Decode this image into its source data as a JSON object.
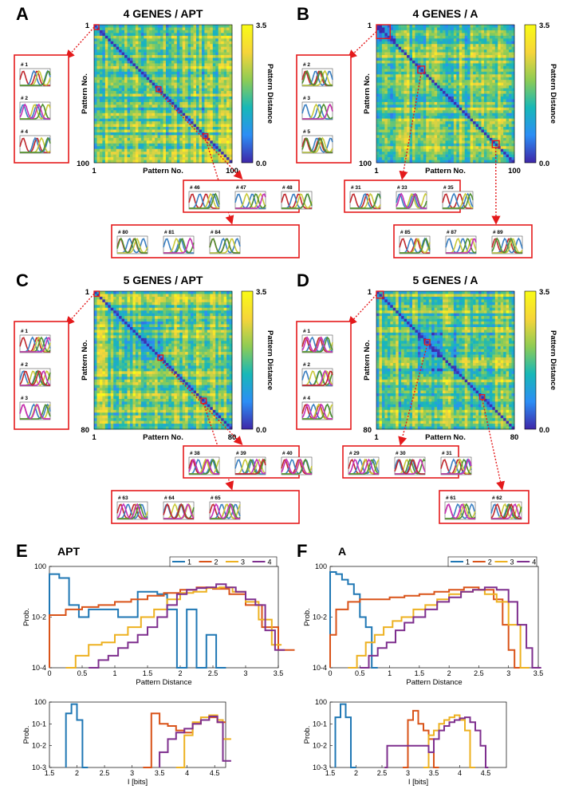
{
  "colors": {
    "highlight": "#e41a1c",
    "series": [
      "#1f77b4",
      "#d95319",
      "#edb120",
      "#7e2f8e"
    ],
    "gene": [
      "#c0282d",
      "#3a7fc1",
      "#c9c93a",
      "#4f8f2f",
      "#c430b8"
    ],
    "colormap": [
      "#3e26a8",
      "#2c8ef5",
      "#17b8b8",
      "#8fcc54",
      "#f6d53a",
      "#f9fb15"
    ]
  },
  "matrix_panels": [
    {
      "id": "A",
      "title": "4 GENES / APT",
      "n": 100,
      "seed": 11,
      "blocks": [],
      "ylabel": "Pattern No.",
      "xlabel": "Pattern No.",
      "tick_start": "1",
      "tick_end": "100",
      "colorbar": {
        "label": "Pattern Distance",
        "max": "3.5",
        "min": "0.0"
      },
      "highlights": [
        {
          "start": 1,
          "size": 1,
          "group": 0
        },
        {
          "start": 46,
          "size": 3,
          "group": 1
        },
        {
          "start": 80,
          "size": 3,
          "group": 2
        }
      ],
      "groups": [
        {
          "labels": [
            "# 1",
            "# 2",
            "# 4"
          ],
          "genes": 4
        },
        {
          "labels": [
            "# 46",
            "# 47",
            "# 48"
          ],
          "genes": 4
        },
        {
          "labels": [
            "# 80",
            "# 81",
            "# 84"
          ],
          "genes": 4
        }
      ]
    },
    {
      "id": "B",
      "title": "4 GENES / A",
      "n": 100,
      "seed": 23,
      "blocks": [
        [
          1,
          10
        ]
      ],
      "ylabel": "Pattern No.",
      "xlabel": "Pattern No.",
      "tick_start": "1",
      "tick_end": "100",
      "colorbar": {
        "label": "Pattern Distance",
        "max": "3.5",
        "min": "0.0"
      },
      "highlights": [
        {
          "start": 1,
          "size": 10,
          "group": 0
        },
        {
          "start": 31,
          "size": 5,
          "group": 1
        },
        {
          "start": 85,
          "size": 5,
          "group": 2
        }
      ],
      "groups": [
        {
          "labels": [
            "# 2",
            "# 3",
            "# 5"
          ],
          "genes": 4
        },
        {
          "labels": [
            "# 31",
            "# 33",
            "# 35"
          ],
          "genes": 4
        },
        {
          "labels": [
            "# 85",
            "# 87",
            "# 89"
          ],
          "genes": 4
        }
      ]
    },
    {
      "id": "C",
      "title": "5 GENES / APT",
      "n": 80,
      "seed": 37,
      "blocks": [
        [
          20,
          40
        ]
      ],
      "ylabel": "Pattern No.",
      "xlabel": "Pattern No.",
      "tick_start": "1",
      "tick_end": "80",
      "colorbar": {
        "label": "Pattern Distance",
        "max": "3.5",
        "min": "0.0"
      },
      "highlights": [
        {
          "start": 1,
          "size": 3,
          "group": 0
        },
        {
          "start": 38,
          "size": 3,
          "group": 1
        },
        {
          "start": 63,
          "size": 3,
          "group": 2
        }
      ],
      "groups": [
        {
          "labels": [
            "# 1",
            "# 2",
            "# 3"
          ],
          "genes": 5
        },
        {
          "labels": [
            "# 38",
            "# 39",
            "# 40"
          ],
          "genes": 5
        },
        {
          "labels": [
            "# 63",
            "# 64",
            "# 65"
          ],
          "genes": 5
        }
      ]
    },
    {
      "id": "D",
      "title": "5 GENES / A",
      "n": 80,
      "seed": 53,
      "blocks": [
        [
          22,
          45
        ]
      ],
      "ylabel": "Pattern No.",
      "xlabel": "Pattern No.",
      "tick_start": "1",
      "tick_end": "80",
      "colorbar": {
        "label": "Pattern Distance",
        "max": "3.5",
        "min": "0.0"
      },
      "highlights": [
        {
          "start": 1,
          "size": 4,
          "group": 0
        },
        {
          "start": 29,
          "size": 3,
          "group": 1
        },
        {
          "start": 61,
          "size": 2,
          "group": 2
        }
      ],
      "groups": [
        {
          "labels": [
            "# 1",
            "# 2",
            "# 4"
          ],
          "genes": 5
        },
        {
          "labels": [
            "# 29",
            "# 30",
            "# 31"
          ],
          "genes": 5
        },
        {
          "labels": [
            "# 61",
            "# 62"
          ],
          "genes": 5
        }
      ]
    }
  ],
  "chart_data": [
    {
      "id": "E",
      "type": "line",
      "title": "APT",
      "scale": "log",
      "xlabel": "Pattern Distance",
      "ylabel": "Prob.",
      "xlim": [
        0,
        3.5
      ],
      "ylim_exp": [
        -4,
        0
      ],
      "xticks": [
        "0",
        "0.5",
        "1",
        "1.5",
        "2",
        "2.5",
        "3",
        "3.5"
      ],
      "yticks": [
        "10-4",
        "10-2",
        "100"
      ],
      "legend": [
        "1",
        "2",
        "3",
        "4"
      ],
      "series": [
        {
          "name": "1",
          "x": [
            0,
            0.15,
            0.3,
            0.45,
            0.6,
            0.75,
            0.9,
            1.05,
            1.2,
            1.35,
            1.5,
            1.65,
            1.8,
            1.95,
            2.1,
            2.25,
            2.4,
            2.55
          ],
          "y": [
            0.5,
            0.35,
            0.03,
            0.01,
            0.02,
            0.02,
            0.02,
            0.01,
            0.01,
            0.1,
            0.1,
            0.08,
            0.02,
            0.0001,
            0.02,
            0.0001,
            0.002,
            0.0001
          ]
        },
        {
          "name": "2",
          "x": [
            0,
            0.25,
            0.5,
            0.75,
            1.0,
            1.25,
            1.5,
            1.75,
            2.0,
            2.25,
            2.5,
            2.75,
            3.0,
            3.25,
            3.5
          ],
          "y": [
            0.012,
            0.02,
            0.025,
            0.03,
            0.04,
            0.05,
            0.07,
            0.09,
            0.12,
            0.15,
            0.13,
            0.08,
            0.03,
            0.004,
            0.0005
          ]
        },
        {
          "name": "3",
          "x": [
            0.25,
            0.4,
            0.6,
            0.8,
            1.0,
            1.2,
            1.4,
            1.6,
            1.8,
            2.0,
            2.2,
            2.4,
            2.6,
            2.8,
            3.0,
            3.2,
            3.4
          ],
          "y": [
            0.0001,
            0.0003,
            0.0008,
            0.001,
            0.002,
            0.004,
            0.01,
            0.02,
            0.05,
            0.09,
            0.1,
            0.14,
            0.15,
            0.1,
            0.04,
            0.008,
            0.0008
          ]
        },
        {
          "name": "4",
          "x": [
            0.6,
            0.75,
            0.9,
            1.05,
            1.2,
            1.35,
            1.5,
            1.65,
            1.8,
            1.95,
            2.1,
            2.25,
            2.4,
            2.55,
            2.7,
            2.85,
            3.0,
            3.15,
            3.3,
            3.45
          ],
          "y": [
            0.0001,
            0.0002,
            0.0003,
            0.0006,
            0.001,
            0.002,
            0.004,
            0.01,
            0.03,
            0.08,
            0.12,
            0.14,
            0.15,
            0.2,
            0.15,
            0.1,
            0.05,
            0.03,
            0.003,
            0.0005
          ]
        }
      ]
    },
    {
      "id": "F",
      "type": "line",
      "title": "A",
      "scale": "log",
      "xlabel": "Pattern Distance",
      "ylabel": "Prob.",
      "xlim": [
        0,
        3.5
      ],
      "ylim_exp": [
        -4,
        0
      ],
      "xticks": [
        "0",
        "0.5",
        "1",
        "1.5",
        "2",
        "2.5",
        "3",
        "3.5"
      ],
      "yticks": [
        "10-4",
        "10-2",
        "100"
      ],
      "legend": [
        "1",
        "2",
        "3",
        "4"
      ],
      "series": [
        {
          "name": "1",
          "x": [
            0,
            0.1,
            0.2,
            0.3,
            0.4,
            0.5,
            0.6,
            0.7
          ],
          "y": [
            0.6,
            0.5,
            0.3,
            0.2,
            0.08,
            0.01,
            0.004,
            0.0001
          ]
        },
        {
          "name": "2",
          "x": [
            0,
            0.1,
            0.3,
            0.5,
            0.75,
            1.0,
            1.25,
            1.5,
            1.75,
            2.0,
            2.25,
            2.5,
            2.75,
            2.9,
            3.0,
            3.1
          ],
          "y": [
            0.002,
            0.02,
            0.04,
            0.05,
            0.05,
            0.06,
            0.07,
            0.08,
            0.1,
            0.12,
            0.15,
            0.12,
            0.05,
            0.005,
            0.0005,
            0.0001
          ]
        },
        {
          "name": "3",
          "x": [
            0.3,
            0.45,
            0.6,
            0.75,
            0.9,
            1.05,
            1.2,
            1.4,
            1.6,
            1.8,
            2.0,
            2.2,
            2.4,
            2.6,
            2.8,
            3.0,
            3.2
          ],
          "y": [
            0.0001,
            0.0003,
            0.001,
            0.002,
            0.004,
            0.007,
            0.01,
            0.02,
            0.03,
            0.05,
            0.08,
            0.1,
            0.12,
            0.08,
            0.04,
            0.005,
            0.0001
          ]
        },
        {
          "name": "4",
          "x": [
            0.5,
            0.65,
            0.8,
            0.95,
            1.1,
            1.25,
            1.4,
            1.6,
            1.8,
            2.0,
            2.2,
            2.4,
            2.6,
            2.8,
            3.0,
            3.15,
            3.3,
            3.4
          ],
          "y": [
            0.0001,
            0.0003,
            0.0006,
            0.001,
            0.003,
            0.006,
            0.01,
            0.02,
            0.04,
            0.06,
            0.1,
            0.12,
            0.15,
            0.12,
            0.04,
            0.005,
            0.0006,
            0.0001
          ]
        }
      ]
    },
    {
      "id": "E2",
      "type": "line",
      "scale": "log",
      "xlabel": "I [bits]",
      "ylabel": "Prob.",
      "xlim": [
        1.5,
        4.7
      ],
      "ylim_exp": [
        -3,
        0
      ],
      "xticks": [
        "1.5",
        "2",
        "2.5",
        "3",
        "3.5",
        "4",
        "4.5"
      ],
      "yticks": [
        "10-3",
        "10-2",
        "10-1",
        "100"
      ],
      "series": [
        {
          "name": "1",
          "x": [
            1.8,
            1.9,
            2.0,
            2.1
          ],
          "y": [
            0.3,
            0.8,
            0.15,
            0.001
          ]
        },
        {
          "name": "2",
          "x": [
            3.2,
            3.35,
            3.5,
            3.65,
            3.8,
            3.95,
            4.1,
            4.25,
            4.4,
            4.55
          ],
          "y": [
            0.001,
            0.3,
            0.1,
            0.08,
            0.05,
            0.04,
            0.1,
            0.15,
            0.2,
            0.12
          ]
        },
        {
          "name": "3",
          "x": [
            3.8,
            3.95,
            4.1,
            4.25,
            4.4,
            4.55,
            4.65
          ],
          "y": [
            0.001,
            0.03,
            0.12,
            0.2,
            0.25,
            0.15,
            0.02
          ]
        },
        {
          "name": "4",
          "x": [
            3.5,
            3.65,
            3.8,
            3.95,
            4.1,
            4.25,
            4.4,
            4.55,
            4.65
          ],
          "y": [
            0.005,
            0.02,
            0.04,
            0.06,
            0.1,
            0.15,
            0.22,
            0.12,
            0.002
          ]
        }
      ]
    },
    {
      "id": "F2",
      "type": "line",
      "scale": "log",
      "xlabel": "I [bits]",
      "ylabel": "Prob.",
      "xlim": [
        1.5,
        4.9
      ],
      "ylim_exp": [
        -3,
        0
      ],
      "xticks": [
        "1.5",
        "2",
        "2.5",
        "3",
        "3.5",
        "4",
        "4.5"
      ],
      "yticks": [
        "10-3",
        "10-2",
        "10-1",
        "100"
      ],
      "series": [
        {
          "name": "1",
          "x": [
            1.6,
            1.7,
            1.8,
            1.9
          ],
          "y": [
            0.2,
            0.8,
            0.2,
            0.001
          ]
        },
        {
          "name": "2",
          "x": [
            2.9,
            3.0,
            3.1,
            3.2,
            3.3,
            3.4,
            3.5
          ],
          "y": [
            0.001,
            0.15,
            0.4,
            0.1,
            0.05,
            0.02,
            0.001
          ]
        },
        {
          "name": "3",
          "x": [
            3.3,
            3.4,
            3.5,
            3.6,
            3.7,
            3.8,
            3.9,
            4.0,
            4.1,
            4.2
          ],
          "y": [
            0.001,
            0.03,
            0.05,
            0.1,
            0.15,
            0.2,
            0.25,
            0.15,
            0.05,
            0.001
          ]
        },
        {
          "name": "4",
          "x": [
            2.55,
            2.6,
            3.4,
            3.5,
            3.6,
            3.7,
            3.8,
            3.9,
            4.0,
            4.1,
            4.2,
            4.3,
            4.4,
            4.5
          ],
          "y": [
            0.001,
            0.01,
            0.005,
            0.02,
            0.05,
            0.08,
            0.12,
            0.15,
            0.18,
            0.2,
            0.12,
            0.05,
            0.01,
            0.001
          ]
        }
      ]
    }
  ]
}
